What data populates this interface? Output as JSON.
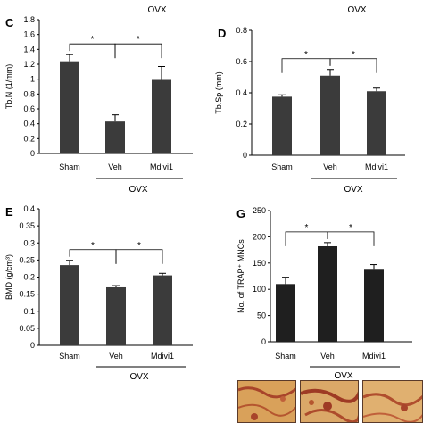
{
  "chart_data": [
    {
      "panel": "C",
      "type": "bar",
      "ylabel": "Tb.N (1/mm)",
      "group_label": "OVX",
      "top_label": "OVX",
      "categories": [
        "Sham",
        "Veh",
        "Mdivi1"
      ],
      "values": [
        1.24,
        0.43,
        0.99
      ],
      "errors": [
        0.09,
        0.09,
        0.18
      ],
      "ylim": [
        0,
        1.8
      ],
      "yticks": [
        0,
        0.2,
        0.4,
        0.6,
        0.8,
        1,
        1.2,
        1.4,
        1.6,
        1.8
      ],
      "ytick_labels": [
        "0",
        "0.2",
        "0.4",
        "0.6",
        "0.8",
        "1",
        "1.2",
        "1.4",
        "1.6",
        "1.8"
      ],
      "significance": [
        {
          "from": 0,
          "to": 1,
          "label": "*"
        },
        {
          "from": 1,
          "to": 2,
          "label": "*"
        }
      ],
      "bar_color": "#3b3b3b"
    },
    {
      "panel": "D",
      "type": "bar",
      "ylabel": "Tb.Sp (mm)",
      "group_label": "OVX",
      "top_label": "OVX",
      "categories": [
        "Sham",
        "Veh",
        "Mdivi1"
      ],
      "values": [
        0.375,
        0.51,
        0.41
      ],
      "errors": [
        0.012,
        0.04,
        0.02
      ],
      "ylim": [
        0,
        0.8
      ],
      "yticks": [
        0,
        0.2,
        0.4,
        0.6,
        0.8
      ],
      "ytick_labels": [
        "0",
        "0.2",
        "0.4",
        "0.6",
        "0.8"
      ],
      "significance": [
        {
          "from": 0,
          "to": 1,
          "label": "*"
        },
        {
          "from": 1,
          "to": 2,
          "label": "*"
        }
      ],
      "bar_color": "#3b3b3b"
    },
    {
      "panel": "E",
      "type": "bar",
      "ylabel": "BMD (g/cm³)",
      "group_label": "OVX",
      "top_label": "",
      "categories": [
        "Sham",
        "Veh",
        "Mdivi1"
      ],
      "values": [
        0.235,
        0.17,
        0.205
      ],
      "errors": [
        0.014,
        0.005,
        0.006
      ],
      "ylim": [
        0,
        0.4
      ],
      "yticks": [
        0,
        0.05,
        0.1,
        0.15,
        0.2,
        0.25,
        0.3,
        0.35,
        0.4
      ],
      "ytick_labels": [
        "0",
        "0.05",
        "0.1",
        "0.15",
        "0.2",
        "0.25",
        "0.3",
        "0.35",
        "0.4"
      ],
      "significance": [
        {
          "from": 0,
          "to": 1,
          "label": "*"
        },
        {
          "from": 1,
          "to": 2,
          "label": "*"
        }
      ],
      "bar_color": "#3b3b3b"
    },
    {
      "panel": "G",
      "type": "bar",
      "ylabel": "No. of TRAP⁺ MNCs",
      "group_label": "OVX",
      "top_label": "",
      "categories": [
        "Sham",
        "Veh",
        "Mdivi1"
      ],
      "values": [
        110,
        182,
        139
      ],
      "errors": [
        13,
        7,
        8
      ],
      "ylim": [
        0,
        250
      ],
      "yticks": [
        0,
        50,
        100,
        150,
        200,
        250
      ],
      "ytick_labels": [
        "0",
        "50",
        "100",
        "150",
        "200",
        "250"
      ],
      "significance": [
        {
          "from": 0,
          "to": 1,
          "label": "*"
        },
        {
          "from": 1,
          "to": 2,
          "label": "*"
        }
      ],
      "bar_color": "#1f1f1f"
    }
  ],
  "micrographs": {
    "label": "OVX",
    "description_colors": [
      "#c98a4a",
      "#b5562f",
      "#e0b070"
    ]
  }
}
